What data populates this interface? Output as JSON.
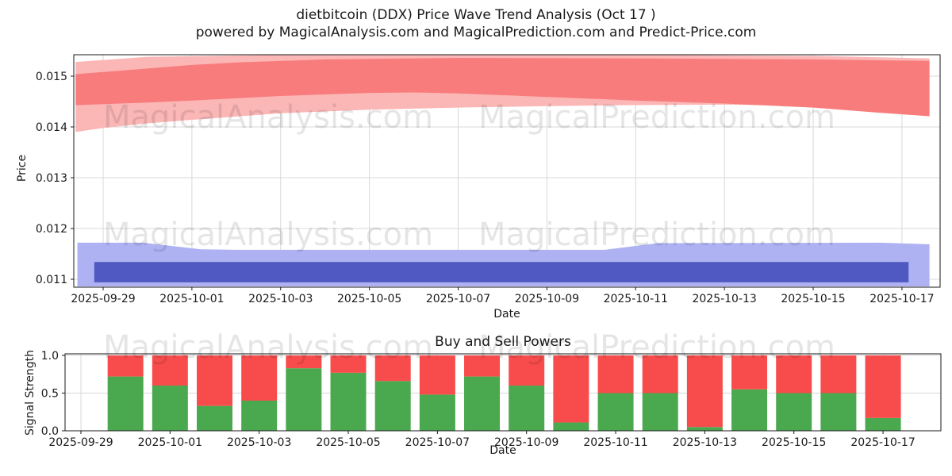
{
  "figure": {
    "title": "dietbitcoin (DDX) Price Wave Trend Analysis (Oct 17 )",
    "subtitle": "powered by MagicalAnalysis.com and MagicalPrediction.com and Predict-Price.com"
  },
  "watermarks": {
    "left": "MagicalAnalysis.com",
    "right": "MagicalPrediction.com"
  },
  "chart_data": [
    {
      "type": "area",
      "name": "price-wave-trend",
      "xlabel": "Date",
      "ylabel": "Price",
      "grid": true,
      "legend": "none",
      "xtick_labels": [
        "2025-09-29",
        "2025-10-01",
        "2025-10-03",
        "2025-10-05",
        "2025-10-07",
        "2025-10-09",
        "2025-10-11",
        "2025-10-13",
        "2025-10-15",
        "2025-10-17"
      ],
      "ytick_values": [
        0.011,
        0.012,
        0.013,
        0.014,
        0.015
      ],
      "ytick_labels": [
        "0.011",
        "0.012",
        "0.013",
        "0.014",
        "0.015"
      ],
      "ylim": [
        0.010844,
        0.015422
      ],
      "x_day_range": [
        -0.66,
        18.86
      ],
      "series": [
        {
          "name": "upper-sell-band-outer",
          "color": "#fbb6b6",
          "upper": [
            [
              -0.62,
              0.01528
            ],
            [
              1,
              0.01538
            ],
            [
              4,
              0.01542
            ],
            [
              8,
              0.01543
            ],
            [
              12,
              0.01542
            ],
            [
              16,
              0.0154
            ],
            [
              18.62,
              0.01535
            ]
          ],
          "lower": [
            [
              -0.62,
              0.0139
            ],
            [
              0,
              0.01398
            ],
            [
              1,
              0.01407
            ],
            [
              2,
              0.01414
            ],
            [
              4,
              0.01427
            ],
            [
              6,
              0.01434
            ],
            [
              8,
              0.01438
            ],
            [
              10,
              0.01441
            ],
            [
              12,
              0.01443
            ],
            [
              14,
              0.01444
            ],
            [
              15.5,
              0.01442
            ],
            [
              17,
              0.01432
            ],
            [
              18.62,
              0.01421
            ]
          ]
        },
        {
          "name": "upper-sell-band-inner",
          "color": "#f87c7c",
          "upper": [
            [
              -0.62,
              0.01504
            ],
            [
              1,
              0.01515
            ],
            [
              2,
              0.01522
            ],
            [
              3,
              0.01527
            ],
            [
              5,
              0.01533
            ],
            [
              8,
              0.01536
            ],
            [
              12,
              0.01535
            ],
            [
              16,
              0.01533
            ],
            [
              18.62,
              0.0153
            ]
          ],
          "lower": [
            [
              -0.62,
              0.01443
            ],
            [
              1,
              0.01448
            ],
            [
              2,
              0.01452
            ],
            [
              4,
              0.01461
            ],
            [
              6,
              0.01467
            ],
            [
              7,
              0.01468
            ],
            [
              8,
              0.01466
            ],
            [
              10,
              0.01459
            ],
            [
              12,
              0.01452
            ],
            [
              14,
              0.01446
            ],
            [
              16,
              0.01438
            ],
            [
              17.5,
              0.01428
            ],
            [
              18.62,
              0.01421
            ]
          ]
        },
        {
          "name": "lower-buy-band-outer",
          "color": "#aeb2f2",
          "upper": [
            [
              -0.58,
              0.01172
            ],
            [
              0.9,
              0.01172
            ],
            [
              2.2,
              0.01159
            ],
            [
              3,
              0.01158
            ],
            [
              11.3,
              0.01158
            ],
            [
              12.5,
              0.01171
            ],
            [
              17.5,
              0.01172
            ],
            [
              18.62,
              0.01169
            ]
          ],
          "lower": [
            [
              -0.58,
              0.01086
            ],
            [
              18.62,
              0.01086
            ]
          ]
        },
        {
          "name": "lower-buy-band-inner",
          "color": "#5059c1",
          "upper": [
            [
              -0.2,
              0.01134
            ],
            [
              18.15,
              0.01134
            ]
          ],
          "lower": [
            [
              -0.2,
              0.01094
            ],
            [
              18.15,
              0.01094
            ]
          ]
        }
      ]
    },
    {
      "type": "bar",
      "name": "buy-sell-powers",
      "title": "Buy and Sell Powers",
      "xlabel": "Date",
      "ylabel": "Signal Strength",
      "grid": true,
      "bar_mode": "stacked",
      "bar_total": 1.0,
      "xtick_labels": [
        "2025-09-29",
        "2025-10-01",
        "2025-10-03",
        "2025-10-05",
        "2025-10-07",
        "2025-10-09",
        "2025-10-11",
        "2025-10-13",
        "2025-10-15",
        "2025-10-17"
      ],
      "ytick_values": [
        0.0,
        0.5,
        1.0
      ],
      "ytick_labels": [
        "0.0",
        "0.5",
        "1.0"
      ],
      "ylim": [
        0.0,
        1.0
      ],
      "categories": [
        "2025-09-30",
        "2025-10-01",
        "2025-10-02",
        "2025-10-03",
        "2025-10-04",
        "2025-10-05",
        "2025-10-06",
        "2025-10-07",
        "2025-10-08",
        "2025-10-09",
        "2025-10-10",
        "2025-10-11",
        "2025-10-12",
        "2025-10-13",
        "2025-10-14",
        "2025-10-15",
        "2025-10-16",
        "2025-10-17"
      ],
      "series": [
        {
          "name": "Buy",
          "color": "#4aa84e",
          "values": [
            0.72,
            0.6,
            0.33,
            0.4,
            0.83,
            0.77,
            0.66,
            0.48,
            0.72,
            0.6,
            0.11,
            0.5,
            0.5,
            0.05,
            0.55,
            0.5,
            0.5,
            0.17
          ]
        },
        {
          "name": "Sell",
          "color": "#f84c4c",
          "values": [
            0.28,
            0.4,
            0.67,
            0.6,
            0.17,
            0.23,
            0.34,
            0.52,
            0.28,
            0.4,
            0.89,
            0.5,
            0.5,
            0.95,
            0.45,
            0.5,
            0.5,
            0.83
          ]
        }
      ]
    }
  ]
}
